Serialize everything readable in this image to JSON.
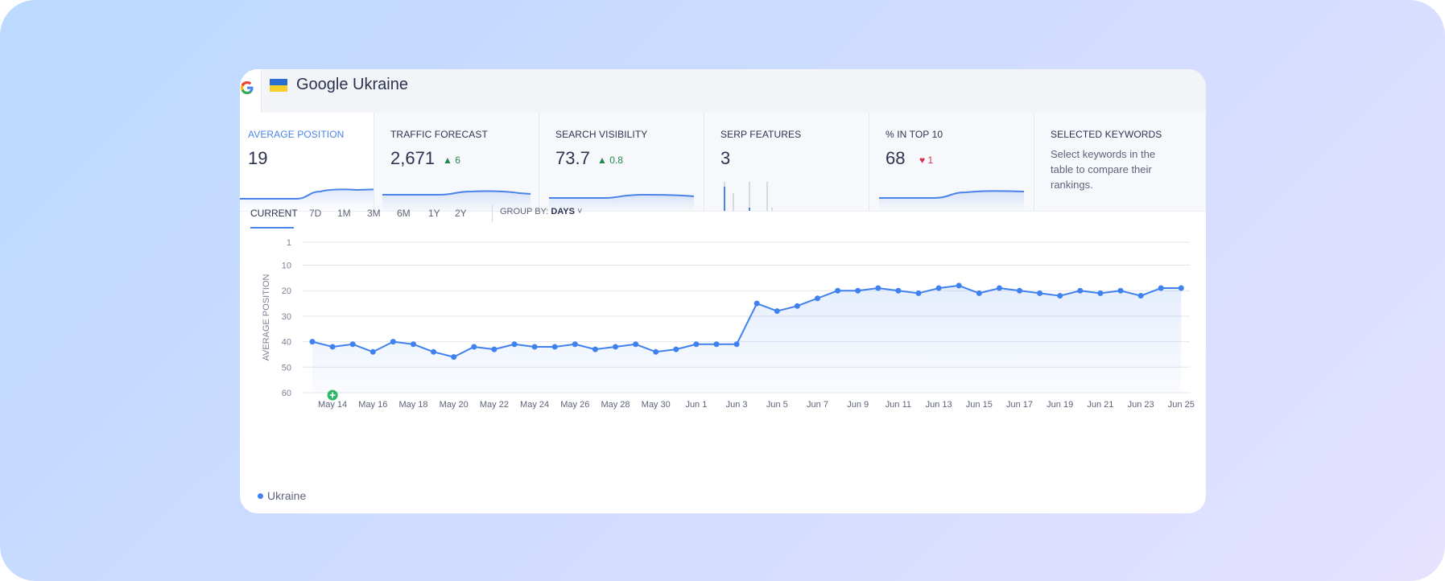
{
  "header": {
    "title": "Google Ukraine",
    "logo_letter": "G"
  },
  "metrics": [
    {
      "label": "AVERAGE POSITION",
      "value": "19",
      "delta": null
    },
    {
      "label": "TRAFFIC FORECAST",
      "value": "2,671",
      "delta": "6",
      "delta_dir": "up"
    },
    {
      "label": "SEARCH VISIBILITY",
      "value": "73.7",
      "delta": "0.8",
      "delta_dir": "up"
    },
    {
      "label": "SERP FEATURES",
      "value": "3",
      "delta": null
    },
    {
      "label": "% IN TOP 10",
      "value": "68",
      "delta": "1",
      "delta_dir": "down"
    },
    {
      "label": "SELECTED KEYWORDS",
      "text": "Select keywords in the table to compare their rankings."
    }
  ],
  "tabs": {
    "items": [
      "CURRENT",
      "7D",
      "1M",
      "3M",
      "6M",
      "1Y",
      "2Y"
    ],
    "selected": "CURRENT"
  },
  "groupby": {
    "label": "GROUP BY:",
    "value": "DAYS"
  },
  "legend": {
    "label": "Ukraine"
  },
  "colors": {
    "accent": "#4a84e8",
    "line": "#3f82ef",
    "up": "#1f8a4c",
    "down": "#d6344a"
  },
  "chart_data": {
    "type": "line",
    "ylabel": "AVERAGE POSITION",
    "ylim": [
      1,
      60
    ],
    "y_reversed": true,
    "y_ticks": [
      1,
      10,
      20,
      30,
      40,
      50,
      60
    ],
    "x_tick_labels": [
      "May 14",
      "May 16",
      "May 18",
      "May 20",
      "May 22",
      "May 24",
      "May 26",
      "May 28",
      "May 30",
      "Jun 1",
      "Jun 3",
      "Jun 5",
      "Jun 7",
      "Jun 9",
      "Jun 11",
      "Jun 13",
      "Jun 15",
      "Jun 17",
      "Jun 19",
      "Jun 21",
      "Jun 23",
      "Jun 25"
    ],
    "x_start": "May 13",
    "grid": true,
    "series": [
      {
        "name": "Ukraine",
        "values": [
          40,
          42,
          41,
          44,
          40,
          41,
          44,
          46,
          42,
          43,
          41,
          42,
          42,
          41,
          43,
          42,
          41,
          44,
          43,
          41,
          41,
          41,
          25,
          28,
          26,
          23,
          20,
          20,
          19,
          20,
          21,
          19,
          18,
          21,
          19,
          20,
          21,
          22,
          20,
          21,
          20,
          22,
          19,
          19
        ]
      }
    ]
  }
}
